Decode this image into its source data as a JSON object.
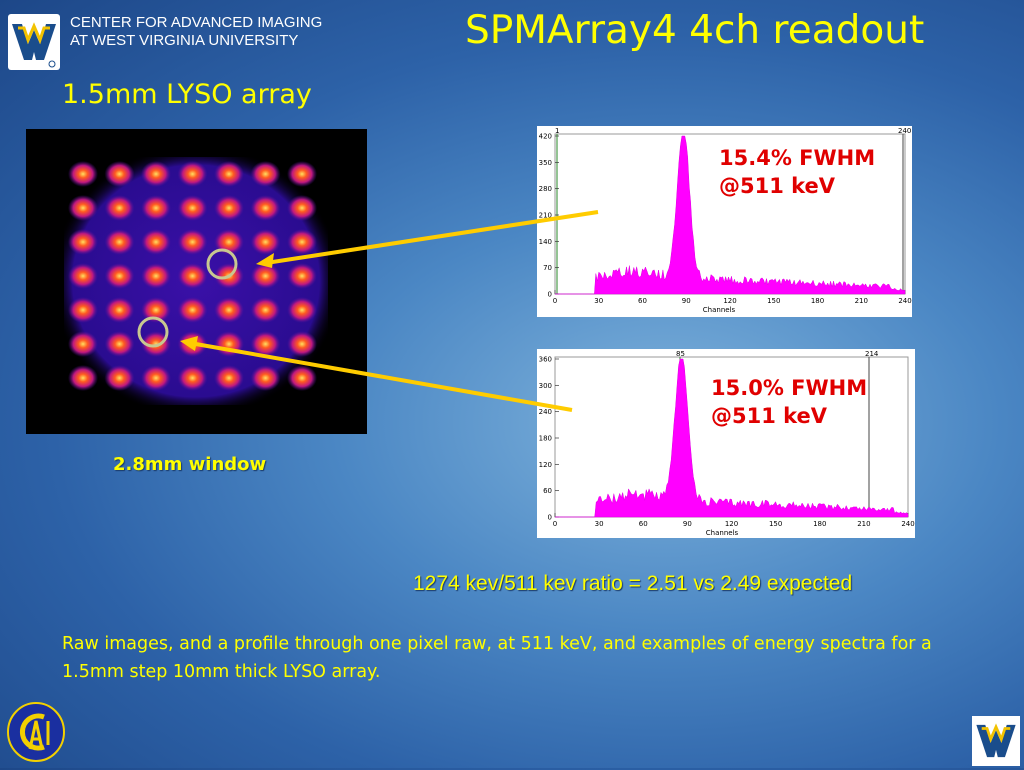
{
  "header": {
    "org_line1": "CENTER FOR ADVANCED IMAGING",
    "org_line2": "AT WEST VIRGINIA UNIVERSITY",
    "title": "SPMArray4 4ch readout",
    "subtitle": "1.5mm LYSO array"
  },
  "flood_image": {
    "window_label": "2.8mm window"
  },
  "spectrum_top": {
    "fwhm_line1": "15.4% FWHM",
    "fwhm_line2": "@511 keV",
    "y_ticks": [
      "0",
      "70",
      "140",
      "210",
      "280",
      "350",
      "420"
    ],
    "x_ticks": [
      "0",
      "30",
      "60",
      "90",
      "120",
      "150",
      "180",
      "210",
      "240"
    ],
    "x_label": "Channels",
    "marker_top_right": "240",
    "marker_top_left": "1"
  },
  "spectrum_bottom": {
    "fwhm_line1": "15.0% FWHM",
    "fwhm_line2": "@511 keV",
    "y_ticks": [
      "0",
      "60",
      "120",
      "180",
      "240",
      "300",
      "360"
    ],
    "x_ticks": [
      "0",
      "30",
      "60",
      "90",
      "120",
      "150",
      "180",
      "210",
      "240"
    ],
    "x_label": "Channels",
    "marker_top_left": "85",
    "marker_top_right": "214"
  },
  "ratio_text": "1274 kev/511 kev ratio = 2.51 vs 2.49 expected",
  "caption": "Raw images, and a profile through one pixel raw, at 511 keV, and examples of energy spectra for a 1.5mm step 10mm thick LYSO array.",
  "logos": {
    "wvu_text": "WV",
    "cai_text": "CAI"
  },
  "colors": {
    "title": "#ffff00",
    "fwhm": "#e00000",
    "spectrum": "#ff00ff",
    "arrow": "#ffcc00"
  }
}
